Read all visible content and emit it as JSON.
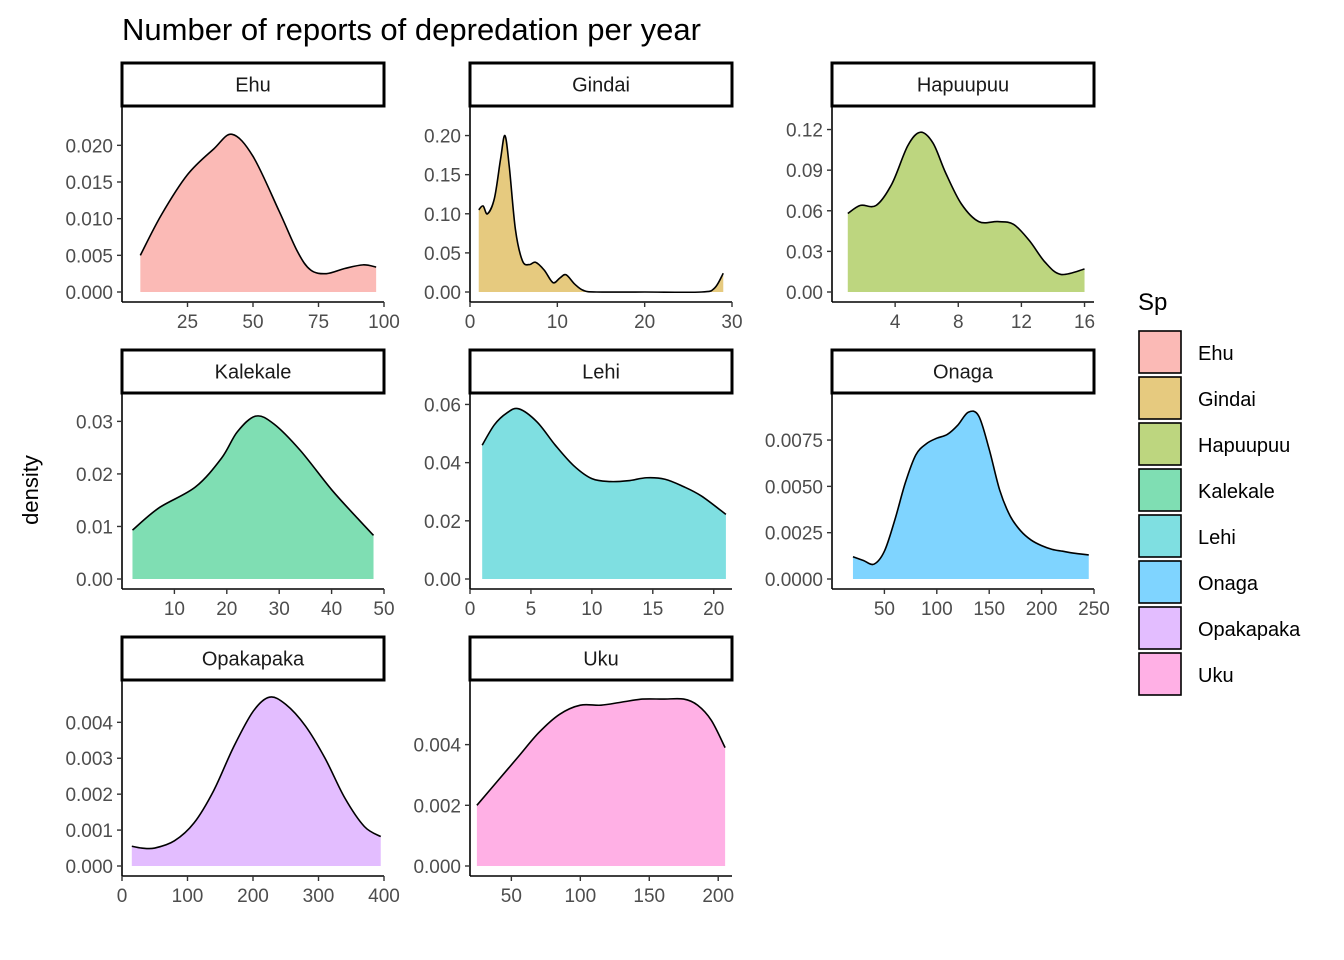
{
  "chart_data": {
    "type": "area",
    "title": "Number of reports of depredation per year",
    "ylabel": "density",
    "xlabel": "",
    "legend": {
      "title": "Sp",
      "position": "right"
    },
    "grid": false,
    "panels": [
      {
        "name": "Ehu",
        "color": "#F8766D",
        "xlim": [
          0,
          100
        ],
        "ylim": [
          0,
          0.024
        ],
        "xticks": [
          25,
          50,
          75,
          100
        ],
        "xtick_labels": [
          "25",
          "50",
          "75",
          "100"
        ],
        "yticks": [
          0,
          0.005,
          0.01,
          0.015,
          0.02
        ],
        "ytick_labels": [
          "0.000",
          "0.005",
          "0.010",
          "0.015",
          "0.020"
        ],
        "x": [
          7,
          15,
          25,
          35,
          42,
          50,
          60,
          67,
          72,
          78,
          85,
          92,
          97
        ],
        "y": [
          0.005,
          0.0105,
          0.016,
          0.0195,
          0.0215,
          0.0185,
          0.011,
          0.0055,
          0.003,
          0.0025,
          0.0032,
          0.0037,
          0.0034
        ]
      },
      {
        "name": "Gindai",
        "color": "#CD9600",
        "xlim": [
          0,
          30
        ],
        "ylim": [
          0,
          0.225
        ],
        "xticks": [
          0,
          10,
          20,
          30
        ],
        "xtick_labels": [
          "0",
          "10",
          "20",
          "30"
        ],
        "yticks": [
          0,
          0.05,
          0.1,
          0.15,
          0.2
        ],
        "ytick_labels": [
          "0.00",
          "0.05",
          "0.10",
          "0.15",
          "0.20"
        ],
        "x": [
          1,
          1.5,
          2,
          2.8,
          3.5,
          4,
          4.5,
          5.2,
          6,
          6.8,
          7.5,
          8.5,
          9.5,
          10.3,
          11,
          12,
          13,
          14.5,
          20,
          26.5,
          28,
          29
        ],
        "y": [
          0.105,
          0.11,
          0.1,
          0.12,
          0.17,
          0.2,
          0.16,
          0.08,
          0.04,
          0.035,
          0.038,
          0.028,
          0.012,
          0.018,
          0.022,
          0.01,
          0.002,
          0,
          0,
          0,
          0.005,
          0.024
        ]
      },
      {
        "name": "Hapuupuu",
        "color": "#7CAE00",
        "xlim": [
          0,
          16.6
        ],
        "ylim": [
          0,
          0.13
        ],
        "xticks": [
          4,
          8,
          12,
          16
        ],
        "xtick_labels": [
          "4",
          "8",
          "12",
          "16"
        ],
        "yticks": [
          0,
          0.03,
          0.06,
          0.09,
          0.12
        ],
        "ytick_labels": [
          "0.00",
          "0.03",
          "0.06",
          "0.09",
          "0.12"
        ],
        "x": [
          1,
          1.8,
          2.8,
          3.8,
          4.8,
          5.6,
          6.4,
          7.2,
          8.2,
          9.3,
          10.5,
          11.5,
          12.5,
          13.5,
          14.5,
          16
        ],
        "y": [
          0.058,
          0.064,
          0.064,
          0.08,
          0.108,
          0.118,
          0.11,
          0.088,
          0.065,
          0.052,
          0.052,
          0.05,
          0.038,
          0.022,
          0.013,
          0.017
        ]
      },
      {
        "name": "Kalekale",
        "color": "#00BE67",
        "xlim": [
          0,
          50
        ],
        "ylim": [
          0,
          0.0335
        ],
        "xticks": [
          10,
          20,
          30,
          40,
          50
        ],
        "xtick_labels": [
          "10",
          "20",
          "30",
          "40",
          "50"
        ],
        "yticks": [
          0,
          0.01,
          0.02,
          0.03
        ],
        "ytick_labels": [
          "0.00",
          "0.01",
          "0.02",
          "0.03"
        ],
        "x": [
          2,
          7,
          14,
          19,
          22,
          25.5,
          29,
          34,
          40,
          45,
          48
        ],
        "y": [
          0.0093,
          0.0135,
          0.0175,
          0.023,
          0.028,
          0.031,
          0.0295,
          0.0245,
          0.017,
          0.0115,
          0.0083
        ]
      },
      {
        "name": "Lehi",
        "color": "#00BFC4",
        "xlim": [
          0,
          21.5
        ],
        "ylim": [
          0,
          0.0605
        ],
        "xticks": [
          0,
          5,
          10,
          15,
          20
        ],
        "xtick_labels": [
          "0",
          "5",
          "10",
          "15",
          "20"
        ],
        "yticks": [
          0,
          0.02,
          0.04,
          0.06
        ],
        "ytick_labels": [
          "0.00",
          "0.02",
          "0.04",
          "0.06"
        ],
        "x": [
          1,
          2,
          3,
          4,
          5.5,
          7,
          8.5,
          10,
          11.5,
          13,
          14.5,
          16,
          17.5,
          19,
          21
        ],
        "y": [
          0.046,
          0.053,
          0.057,
          0.0585,
          0.054,
          0.046,
          0.039,
          0.0345,
          0.0335,
          0.0338,
          0.0348,
          0.0343,
          0.0318,
          0.0285,
          0.0222
        ]
      },
      {
        "name": "Onaga",
        "color": "#00A9FF",
        "xlim": [
          0,
          250
        ],
        "ylim": [
          0,
          0.0095
        ],
        "xticks": [
          50,
          100,
          150,
          200,
          250
        ],
        "xtick_labels": [
          "50",
          "100",
          "150",
          "200",
          "250"
        ],
        "yticks": [
          0,
          0.0025,
          0.005,
          0.0075
        ],
        "ytick_labels": [
          "0.0000",
          "0.0025",
          "0.0050",
          "0.0075"
        ],
        "x": [
          20,
          30,
          40,
          50,
          60,
          70,
          80,
          90,
          100,
          110,
          120,
          130,
          140,
          150,
          160,
          170,
          180,
          190,
          200,
          210,
          220,
          230,
          245
        ],
        "y": [
          0.0012,
          0.001,
          0.0008,
          0.0015,
          0.0032,
          0.0052,
          0.0067,
          0.0073,
          0.0076,
          0.0078,
          0.0083,
          0.009,
          0.0088,
          0.007,
          0.0048,
          0.0034,
          0.0026,
          0.0021,
          0.0018,
          0.0016,
          0.0015,
          0.0014,
          0.0013
        ]
      },
      {
        "name": "Opakapaka",
        "color": "#C77CFF",
        "xlim": [
          0,
          400
        ],
        "ylim": [
          0,
          0.0049
        ],
        "xticks": [
          0,
          100,
          200,
          300,
          400
        ],
        "xtick_labels": [
          "0",
          "100",
          "200",
          "300",
          "400"
        ],
        "yticks": [
          0,
          0.001,
          0.002,
          0.003,
          0.004
        ],
        "ytick_labels": [
          "0.000",
          "0.001",
          "0.002",
          "0.003",
          "0.004"
        ],
        "x": [
          15,
          30,
          50,
          80,
          110,
          140,
          170,
          200,
          225,
          250,
          280,
          310,
          340,
          370,
          395
        ],
        "y": [
          0.00055,
          0.0005,
          0.0005,
          0.0007,
          0.0012,
          0.0021,
          0.0033,
          0.0043,
          0.0047,
          0.0045,
          0.0039,
          0.003,
          0.0019,
          0.0011,
          0.00082
        ]
      },
      {
        "name": "Uku",
        "color": "#FF61CC",
        "xlim": [
          20,
          210
        ],
        "ylim": [
          0,
          0.0058
        ],
        "xticks": [
          50,
          100,
          150,
          200
        ],
        "xtick_labels": [
          "50",
          "100",
          "150",
          "200"
        ],
        "yticks": [
          0,
          0.002,
          0.004
        ],
        "ytick_labels": [
          "0.000",
          "0.002",
          "0.004"
        ],
        "x": [
          25,
          40,
          55,
          70,
          85,
          100,
          115,
          130,
          145,
          160,
          175,
          185,
          195,
          205
        ],
        "y": [
          0.002,
          0.0028,
          0.0036,
          0.0044,
          0.005,
          0.0053,
          0.0053,
          0.0054,
          0.0055,
          0.0055,
          0.0055,
          0.0053,
          0.0048,
          0.0039
        ]
      }
    ]
  }
}
